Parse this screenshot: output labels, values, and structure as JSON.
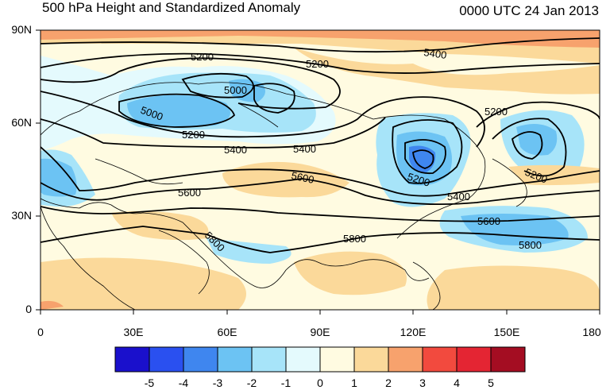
{
  "header": {
    "title": "500 hPa Height and Standardized Anomaly",
    "datetime": "0000 UTC 24 Jan 2013"
  },
  "map": {
    "y_axis_labels": [
      "90N",
      "60N",
      "30N",
      "0"
    ],
    "x_axis_labels": [
      "0",
      "30E",
      "60E",
      "90E",
      "120E",
      "150E",
      "180"
    ],
    "contour_labels": [
      {
        "id": "c5200a",
        "text": "5200"
      },
      {
        "id": "c5200b",
        "text": "5200"
      },
      {
        "id": "c5400a",
        "text": "5400"
      },
      {
        "id": "c5000a",
        "text": "5000"
      },
      {
        "id": "c5000b",
        "text": "5000"
      },
      {
        "id": "c5200c",
        "text": "5200"
      },
      {
        "id": "c5400b",
        "text": "5400"
      },
      {
        "id": "c5400c",
        "text": "5400"
      },
      {
        "id": "c5600a",
        "text": "5600"
      },
      {
        "id": "c5600b",
        "text": "5600"
      },
      {
        "id": "c5200d",
        "text": "5200"
      },
      {
        "id": "c5200e",
        "text": "5200"
      },
      {
        "id": "c5200f",
        "text": "5200"
      },
      {
        "id": "c5400d",
        "text": "5400"
      },
      {
        "id": "c5600c",
        "text": "5600"
      },
      {
        "id": "c5800a",
        "text": "5800"
      },
      {
        "id": "c5800b",
        "text": "5800"
      },
      {
        "id": "c5800c",
        "text": "5800"
      }
    ]
  },
  "colorbar": {
    "labels": [
      "-5",
      "-4",
      "-3",
      "-2",
      "-1",
      "0",
      "1",
      "2",
      "3",
      "4",
      "5"
    ],
    "colors": [
      "#1a10cc",
      "#2a50f0",
      "#3f86ef",
      "#6cc3f3",
      "#a7e4f9",
      "#e4fafd",
      "#fffbe1",
      "#fbd99a",
      "#f7a26d",
      "#f24a3e",
      "#e42533",
      "#a40d22"
    ]
  }
}
